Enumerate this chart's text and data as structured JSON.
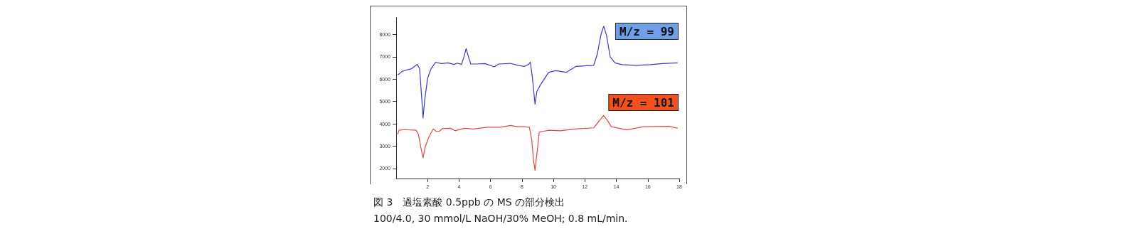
{
  "chart_data": {
    "type": "line",
    "title": "図 3　過塩素酸 0.5ppb の MS の部分検出",
    "subtitle": "100/4.0, 30 mmol/L NaOH/30% MeOH; 0.8 mL/min.",
    "xlim": [
      0,
      18
    ],
    "xticks": [
      2,
      4,
      6,
      8,
      10,
      12,
      14,
      16,
      18
    ],
    "ylim": [
      1550,
      8750
    ],
    "yticks": [
      2000,
      3000,
      4000,
      5000,
      6000,
      7000,
      8000
    ],
    "grid": false,
    "legend": false,
    "marker": "none",
    "line_style": "solid",
    "series": [
      {
        "name": "M/z = 99",
        "color": "#3a3ac8",
        "x": [
          0.1,
          0.18,
          0.4,
          0.98,
          1.34,
          1.49,
          1.6,
          1.71,
          1.82,
          2.0,
          2.22,
          2.51,
          2.88,
          3.31,
          3.68,
          3.9,
          4.16,
          4.31,
          4.45,
          4.6,
          4.74,
          5.07,
          5.65,
          6.23,
          6.53,
          7.26,
          7.74,
          8.13,
          8.42,
          8.53,
          8.65,
          8.83,
          8.95,
          9.25,
          9.7,
          10.15,
          10.83,
          11.43,
          12.56,
          12.78,
          13.04,
          13.2,
          13.38,
          13.61,
          13.91,
          14.36,
          15.26,
          16.17,
          16.92,
          17.9
        ],
        "values": [
          6200,
          6230,
          6360,
          6470,
          6660,
          6470,
          5410,
          4270,
          5090,
          6040,
          6470,
          6760,
          6700,
          6730,
          6660,
          6720,
          6660,
          7000,
          7370,
          7000,
          6680,
          6680,
          6700,
          6550,
          6680,
          6710,
          6620,
          6570,
          6660,
          6760,
          6150,
          4880,
          5460,
          5830,
          6310,
          6380,
          6310,
          6570,
          6620,
          7100,
          8050,
          8370,
          7950,
          7000,
          6730,
          6650,
          6620,
          6650,
          6700,
          6730
        ]
      },
      {
        "name": "M/z = 101",
        "color": "#e04848",
        "x": [
          0.1,
          0.18,
          0.54,
          1.27,
          1.42,
          1.59,
          1.71,
          1.85,
          2.07,
          2.36,
          2.55,
          2.73,
          2.95,
          3.46,
          3.75,
          4.34,
          4.92,
          5.8,
          6.67,
          7.26,
          7.74,
          8.13,
          8.47,
          8.62,
          8.74,
          8.83,
          8.95,
          9.1,
          9.7,
          10.45,
          11.35,
          12.56,
          12.93,
          13.19,
          13.43,
          13.68,
          14.66,
          15.71,
          17.36,
          17.9
        ],
        "values": [
          3520,
          3710,
          3740,
          3710,
          3520,
          2870,
          2480,
          2970,
          3400,
          3770,
          3660,
          3660,
          3790,
          3800,
          3690,
          3800,
          3770,
          3850,
          3850,
          3930,
          3870,
          3870,
          3850,
          3290,
          2340,
          1920,
          2660,
          3630,
          3710,
          3690,
          3770,
          3820,
          4140,
          4370,
          4160,
          3870,
          3730,
          3870,
          3890,
          3800
        ]
      }
    ]
  }
}
